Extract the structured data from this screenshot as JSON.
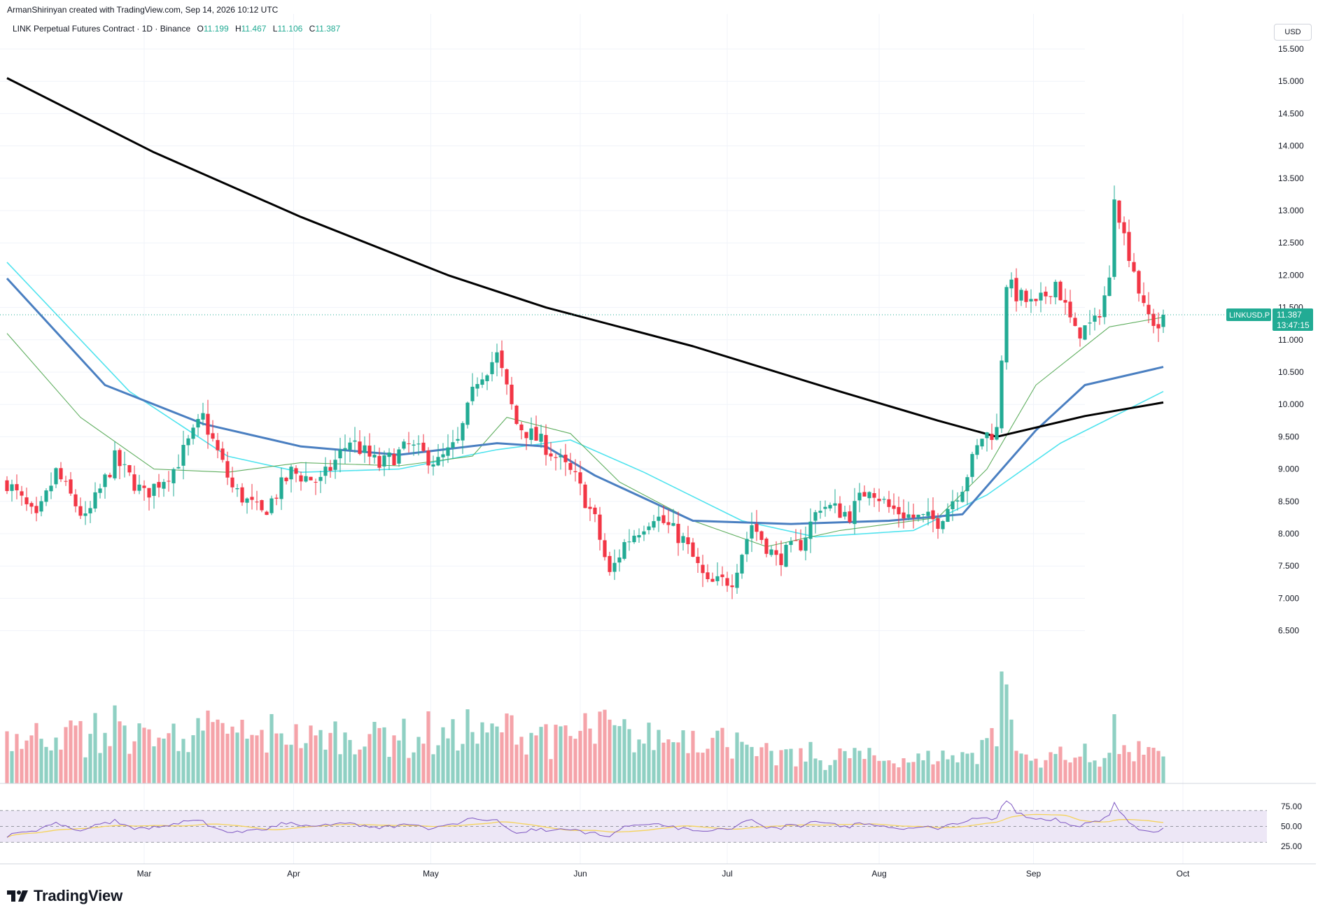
{
  "header": {
    "author": "ArmanShirinyan created with TradingView.com, Sep 14, 2026 10:12 UTC"
  },
  "legend": {
    "symbol_line": "LINK Perpetual Futures Contract · 1D · Binance",
    "open_label": "O",
    "open": "11.199",
    "high_label": "H",
    "high": "11.467",
    "low_label": "L",
    "low": "11.106",
    "close_label": "C",
    "close": "11.387"
  },
  "currency_button": "USD",
  "price_tag": {
    "ticker": "LINKUSD.P",
    "price": "11.387",
    "countdown": "13:47:15"
  },
  "footer_logo": "TradingView",
  "colors": {
    "up": "#22ab94",
    "down": "#f23645",
    "volume_up": "#8fd0c3",
    "volume_down": "#f5a3a9",
    "ma200": "#000000",
    "ma50": "#4a7fc1",
    "ma_fast": "#5fae5f",
    "ma_cyan": "#4fe3ee",
    "rsi": "#7e57c2",
    "rsi_ma": "#f5d35b",
    "rsi_band": "#ede7f6"
  },
  "chart_data": {
    "type": "candlestick",
    "price_axis": {
      "labels": [
        "15.500",
        "15.000",
        "14.500",
        "14.000",
        "13.500",
        "13.000",
        "12.500",
        "12.000",
        "11.500",
        "11.000",
        "10.500",
        "10.000",
        "9.500",
        "9.000",
        "8.500",
        "8.000",
        "7.500",
        "7.000",
        "6.500"
      ]
    },
    "time_axis": {
      "labels": [
        "Mar",
        "Apr",
        "May",
        "Jun",
        "Jul",
        "Aug",
        "Sep",
        "Oct"
      ]
    },
    "rsi_axis": {
      "labels": [
        "75.00",
        "50.00",
        "25.00"
      ]
    },
    "start_date": "2026-02-01",
    "anchors": [
      {
        "day": 0,
        "p": 8.8
      },
      {
        "day": 6,
        "p": 8.2
      },
      {
        "day": 10,
        "p": 8.95
      },
      {
        "day": 16,
        "p": 8.2
      },
      {
        "day": 22,
        "p": 9.15
      },
      {
        "day": 28,
        "p": 8.6
      },
      {
        "day": 34,
        "p": 9.0
      },
      {
        "day": 40,
        "p": 9.8
      },
      {
        "day": 46,
        "p": 8.7
      },
      {
        "day": 52,
        "p": 8.3
      },
      {
        "day": 58,
        "p": 8.95
      },
      {
        "day": 64,
        "p": 8.8
      },
      {
        "day": 70,
        "p": 9.45
      },
      {
        "day": 76,
        "p": 9.05
      },
      {
        "day": 82,
        "p": 9.35
      },
      {
        "day": 88,
        "p": 9.1
      },
      {
        "day": 92,
        "p": 9.4
      },
      {
        "day": 96,
        "p": 10.4
      },
      {
        "day": 100,
        "p": 10.75
      },
      {
        "day": 104,
        "p": 9.7
      },
      {
        "day": 110,
        "p": 9.35
      },
      {
        "day": 116,
        "p": 8.85
      },
      {
        "day": 120,
        "p": 8.2
      },
      {
        "day": 123,
        "p": 7.35
      },
      {
        "day": 126,
        "p": 7.85
      },
      {
        "day": 132,
        "p": 8.3
      },
      {
        "day": 138,
        "p": 7.9
      },
      {
        "day": 143,
        "p": 7.2
      },
      {
        "day": 148,
        "p": 7.3
      },
      {
        "day": 152,
        "p": 8.15
      },
      {
        "day": 157,
        "p": 7.6
      },
      {
        "day": 162,
        "p": 7.85
      },
      {
        "day": 166,
        "p": 8.45
      },
      {
        "day": 172,
        "p": 8.3
      },
      {
        "day": 176,
        "p": 8.75
      },
      {
        "day": 180,
        "p": 8.4
      },
      {
        "day": 185,
        "p": 8.25
      },
      {
        "day": 190,
        "p": 8.2
      },
      {
        "day": 195,
        "p": 8.75
      },
      {
        "day": 199,
        "p": 9.5
      },
      {
        "day": 202,
        "p": 9.6
      },
      {
        "day": 204,
        "p": 11.9
      },
      {
        "day": 206,
        "p": 11.7
      },
      {
        "day": 210,
        "p": 11.5
      },
      {
        "day": 214,
        "p": 11.9
      },
      {
        "day": 218,
        "p": 11.1
      },
      {
        "day": 222,
        "p": 11.25
      },
      {
        "day": 225,
        "p": 11.9
      },
      {
        "day": 226,
        "p": 13.3
      },
      {
        "day": 228,
        "p": 12.6
      },
      {
        "day": 230,
        "p": 12.1
      },
      {
        "day": 232,
        "p": 11.45
      },
      {
        "day": 235,
        "p": 11.2
      },
      {
        "day": 236,
        "p": 11.387
      }
    ],
    "ma200": [
      [
        0,
        15.05
      ],
      [
        30,
        13.9
      ],
      [
        60,
        12.9
      ],
      [
        90,
        12.0
      ],
      [
        110,
        11.5
      ],
      [
        140,
        10.9
      ],
      [
        170,
        10.2
      ],
      [
        190,
        9.75
      ],
      [
        202,
        9.5
      ],
      [
        220,
        9.82
      ],
      [
        236,
        10.03
      ]
    ],
    "ma50": [
      [
        0,
        11.95
      ],
      [
        20,
        10.3
      ],
      [
        40,
        9.7
      ],
      [
        60,
        9.35
      ],
      [
        80,
        9.22
      ],
      [
        100,
        9.4
      ],
      [
        110,
        9.35
      ],
      [
        120,
        8.9
      ],
      [
        140,
        8.2
      ],
      [
        160,
        8.15
      ],
      [
        180,
        8.2
      ],
      [
        195,
        8.3
      ],
      [
        210,
        9.6
      ],
      [
        220,
        10.3
      ],
      [
        236,
        10.58
      ]
    ],
    "ma_cyan": [
      [
        0,
        12.2
      ],
      [
        25,
        10.2
      ],
      [
        45,
        9.2
      ],
      [
        60,
        8.95
      ],
      [
        80,
        9.0
      ],
      [
        100,
        9.3
      ],
      [
        115,
        9.45
      ],
      [
        130,
        8.95
      ],
      [
        150,
        8.2
      ],
      [
        165,
        7.95
      ],
      [
        185,
        8.05
      ],
      [
        200,
        8.6
      ],
      [
        215,
        9.4
      ],
      [
        236,
        10.2
      ]
    ],
    "ma_fast": [
      [
        0,
        11.1
      ],
      [
        15,
        9.8
      ],
      [
        30,
        9.0
      ],
      [
        45,
        8.95
      ],
      [
        60,
        9.1
      ],
      [
        80,
        9.05
      ],
      [
        95,
        9.2
      ],
      [
        102,
        9.8
      ],
      [
        115,
        9.55
      ],
      [
        125,
        8.8
      ],
      [
        140,
        8.2
      ],
      [
        155,
        7.8
      ],
      [
        170,
        8.05
      ],
      [
        190,
        8.25
      ],
      [
        200,
        9.0
      ],
      [
        210,
        10.3
      ],
      [
        225,
        11.2
      ],
      [
        236,
        11.35
      ]
    ]
  }
}
